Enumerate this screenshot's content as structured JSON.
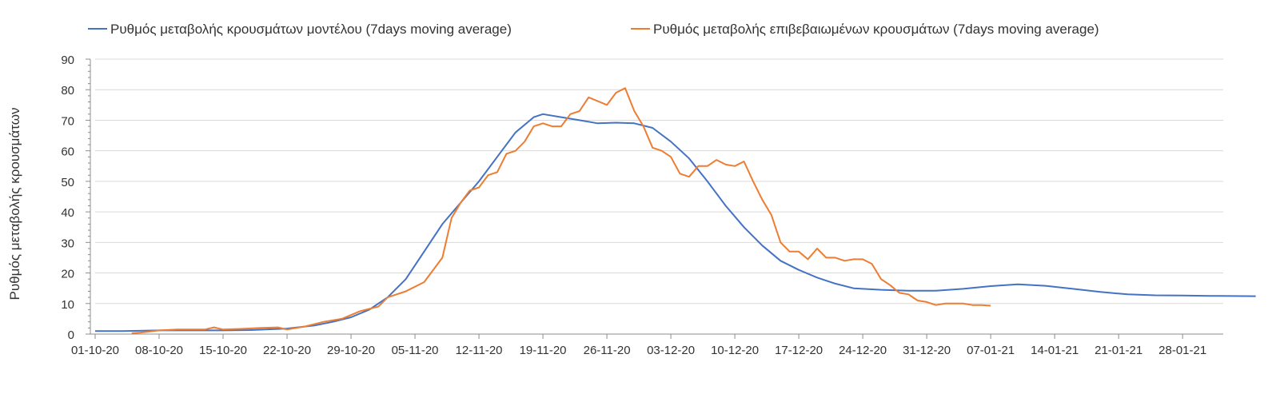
{
  "chart_data": {
    "type": "line",
    "title": "",
    "ylabel": "Ρυθμός μεταβολής κρουσμάτων",
    "xlabel": "",
    "ylim": [
      0,
      90
    ],
    "yticks": [
      0,
      10,
      20,
      30,
      40,
      50,
      60,
      70,
      80,
      90
    ],
    "xlim": [
      "2020-10-01",
      "2021-02-05"
    ],
    "xtick_labels": [
      "01-10-20",
      "08-10-20",
      "15-10-20",
      "22-10-20",
      "29-10-20",
      "05-11-20",
      "12-11-20",
      "19-11-20",
      "26-11-20",
      "03-12-20",
      "10-12-20",
      "17-12-20",
      "24-12-20",
      "31-12-20",
      "07-01-21",
      "14-01-21",
      "21-01-21",
      "28-01-21"
    ],
    "grid": "horizontal",
    "legend_position": "top",
    "series": [
      {
        "name": "Ρυθμός μεταβολής κρουσμάτων μοντέλου (7days moving average)",
        "color": "#4472c4",
        "points": [
          [
            "2020-10-01",
            1.0
          ],
          [
            "2020-10-04",
            1.0
          ],
          [
            "2020-10-08",
            1.2
          ],
          [
            "2020-10-12",
            1.2
          ],
          [
            "2020-10-15",
            1.2
          ],
          [
            "2020-10-18",
            1.3
          ],
          [
            "2020-10-22",
            1.8
          ],
          [
            "2020-10-25",
            2.8
          ],
          [
            "2020-10-27",
            4.0
          ],
          [
            "2020-10-29",
            5.5
          ],
          [
            "2020-10-31",
            8.0
          ],
          [
            "2020-11-02",
            12.0
          ],
          [
            "2020-11-04",
            18.0
          ],
          [
            "2020-11-06",
            27.0
          ],
          [
            "2020-11-08",
            36.0
          ],
          [
            "2020-11-10",
            43.0
          ],
          [
            "2020-11-12",
            50.0
          ],
          [
            "2020-11-14",
            58.0
          ],
          [
            "2020-11-16",
            66.0
          ],
          [
            "2020-11-18",
            71.0
          ],
          [
            "2020-11-19",
            72.0
          ],
          [
            "2020-11-21",
            71.0
          ],
          [
            "2020-11-23",
            70.0
          ],
          [
            "2020-11-25",
            69.0
          ],
          [
            "2020-11-27",
            69.2
          ],
          [
            "2020-11-29",
            69.0
          ],
          [
            "2020-12-01",
            67.5
          ],
          [
            "2020-12-03",
            63.0
          ],
          [
            "2020-12-05",
            57.5
          ],
          [
            "2020-12-07",
            50.0
          ],
          [
            "2020-12-09",
            42.0
          ],
          [
            "2020-12-11",
            35.0
          ],
          [
            "2020-12-13",
            29.0
          ],
          [
            "2020-12-15",
            24.0
          ],
          [
            "2020-12-17",
            21.0
          ],
          [
            "2020-12-19",
            18.5
          ],
          [
            "2020-12-21",
            16.5
          ],
          [
            "2020-12-23",
            15.0
          ],
          [
            "2020-12-26",
            14.5
          ],
          [
            "2020-12-29",
            14.2
          ],
          [
            "2021-01-01",
            14.2
          ],
          [
            "2021-01-04",
            14.8
          ],
          [
            "2021-01-07",
            15.7
          ],
          [
            "2021-01-10",
            16.3
          ],
          [
            "2021-01-13",
            15.8
          ],
          [
            "2021-01-16",
            14.8
          ],
          [
            "2021-01-19",
            13.8
          ],
          [
            "2021-01-22",
            13.0
          ],
          [
            "2021-01-25",
            12.7
          ],
          [
            "2021-01-28",
            12.6
          ],
          [
            "2021-01-31",
            12.5
          ],
          [
            "2021-02-05",
            12.4
          ]
        ]
      },
      {
        "name": "Ρυθμός μεταβολής επιβεβαιωμένων κρουσμάτων (7days moving average)",
        "color": "#ed7d31",
        "points": [
          [
            "2020-10-05",
            0.3
          ],
          [
            "2020-10-06",
            0.5
          ],
          [
            "2020-10-08",
            1.2
          ],
          [
            "2020-10-10",
            1.5
          ],
          [
            "2020-10-13",
            1.5
          ],
          [
            "2020-10-14",
            2.2
          ],
          [
            "2020-10-15",
            1.5
          ],
          [
            "2020-10-17",
            1.7
          ],
          [
            "2020-10-19",
            2.0
          ],
          [
            "2020-10-21",
            2.2
          ],
          [
            "2020-10-22",
            1.5
          ],
          [
            "2020-10-24",
            2.5
          ],
          [
            "2020-10-26",
            4.0
          ],
          [
            "2020-10-28",
            5.0
          ],
          [
            "2020-10-30",
            7.5
          ],
          [
            "2020-11-01",
            9.0
          ],
          [
            "2020-11-02",
            12.0
          ],
          [
            "2020-11-04",
            14.0
          ],
          [
            "2020-11-06",
            17.0
          ],
          [
            "2020-11-08",
            25.0
          ],
          [
            "2020-11-09",
            38.0
          ],
          [
            "2020-11-10",
            43.0
          ],
          [
            "2020-11-11",
            47.0
          ],
          [
            "2020-11-12",
            48.0
          ],
          [
            "2020-11-13",
            52.0
          ],
          [
            "2020-11-14",
            53.0
          ],
          [
            "2020-11-15",
            59.0
          ],
          [
            "2020-11-16",
            60.0
          ],
          [
            "2020-11-17",
            63.0
          ],
          [
            "2020-11-18",
            68.0
          ],
          [
            "2020-11-19",
            69.0
          ],
          [
            "2020-11-20",
            68.0
          ],
          [
            "2020-11-21",
            68.0
          ],
          [
            "2020-11-22",
            72.0
          ],
          [
            "2020-11-23",
            73.0
          ],
          [
            "2020-11-24",
            77.5
          ],
          [
            "2020-11-26",
            75.0
          ],
          [
            "2020-11-27",
            79.0
          ],
          [
            "2020-11-28",
            80.5
          ],
          [
            "2020-11-29",
            73.0
          ],
          [
            "2020-11-30",
            68.0
          ],
          [
            "2020-12-01",
            61.0
          ],
          [
            "2020-12-02",
            60.0
          ],
          [
            "2020-12-03",
            58.0
          ],
          [
            "2020-12-04",
            52.5
          ],
          [
            "2020-12-05",
            51.5
          ],
          [
            "2020-12-06",
            55.0
          ],
          [
            "2020-12-07",
            55.0
          ],
          [
            "2020-12-08",
            57.0
          ],
          [
            "2020-12-09",
            55.5
          ],
          [
            "2020-12-10",
            55.0
          ],
          [
            "2020-12-11",
            56.5
          ],
          [
            "2020-12-12",
            50.0
          ],
          [
            "2020-12-13",
            44.0
          ],
          [
            "2020-12-14",
            39.0
          ],
          [
            "2020-12-15",
            30.0
          ],
          [
            "2020-12-16",
            27.0
          ],
          [
            "2020-12-17",
            27.0
          ],
          [
            "2020-12-18",
            24.5
          ],
          [
            "2020-12-19",
            28.0
          ],
          [
            "2020-12-20",
            25.0
          ],
          [
            "2020-12-21",
            25.0
          ],
          [
            "2020-12-22",
            24.0
          ],
          [
            "2020-12-23",
            24.5
          ],
          [
            "2020-12-24",
            24.5
          ],
          [
            "2020-12-25",
            23.0
          ],
          [
            "2020-12-26",
            18.0
          ],
          [
            "2020-12-27",
            16.0
          ],
          [
            "2020-12-28",
            13.5
          ],
          [
            "2020-12-29",
            13.0
          ],
          [
            "2020-12-30",
            11.0
          ],
          [
            "2020-12-31",
            10.5
          ],
          [
            "2021-01-01",
            9.5
          ],
          [
            "2021-01-02",
            10.0
          ],
          [
            "2021-01-03",
            10.0
          ],
          [
            "2021-01-04",
            10.0
          ],
          [
            "2021-01-05",
            9.5
          ],
          [
            "2021-01-06",
            9.5
          ],
          [
            "2021-01-07",
            9.3
          ]
        ]
      }
    ]
  }
}
